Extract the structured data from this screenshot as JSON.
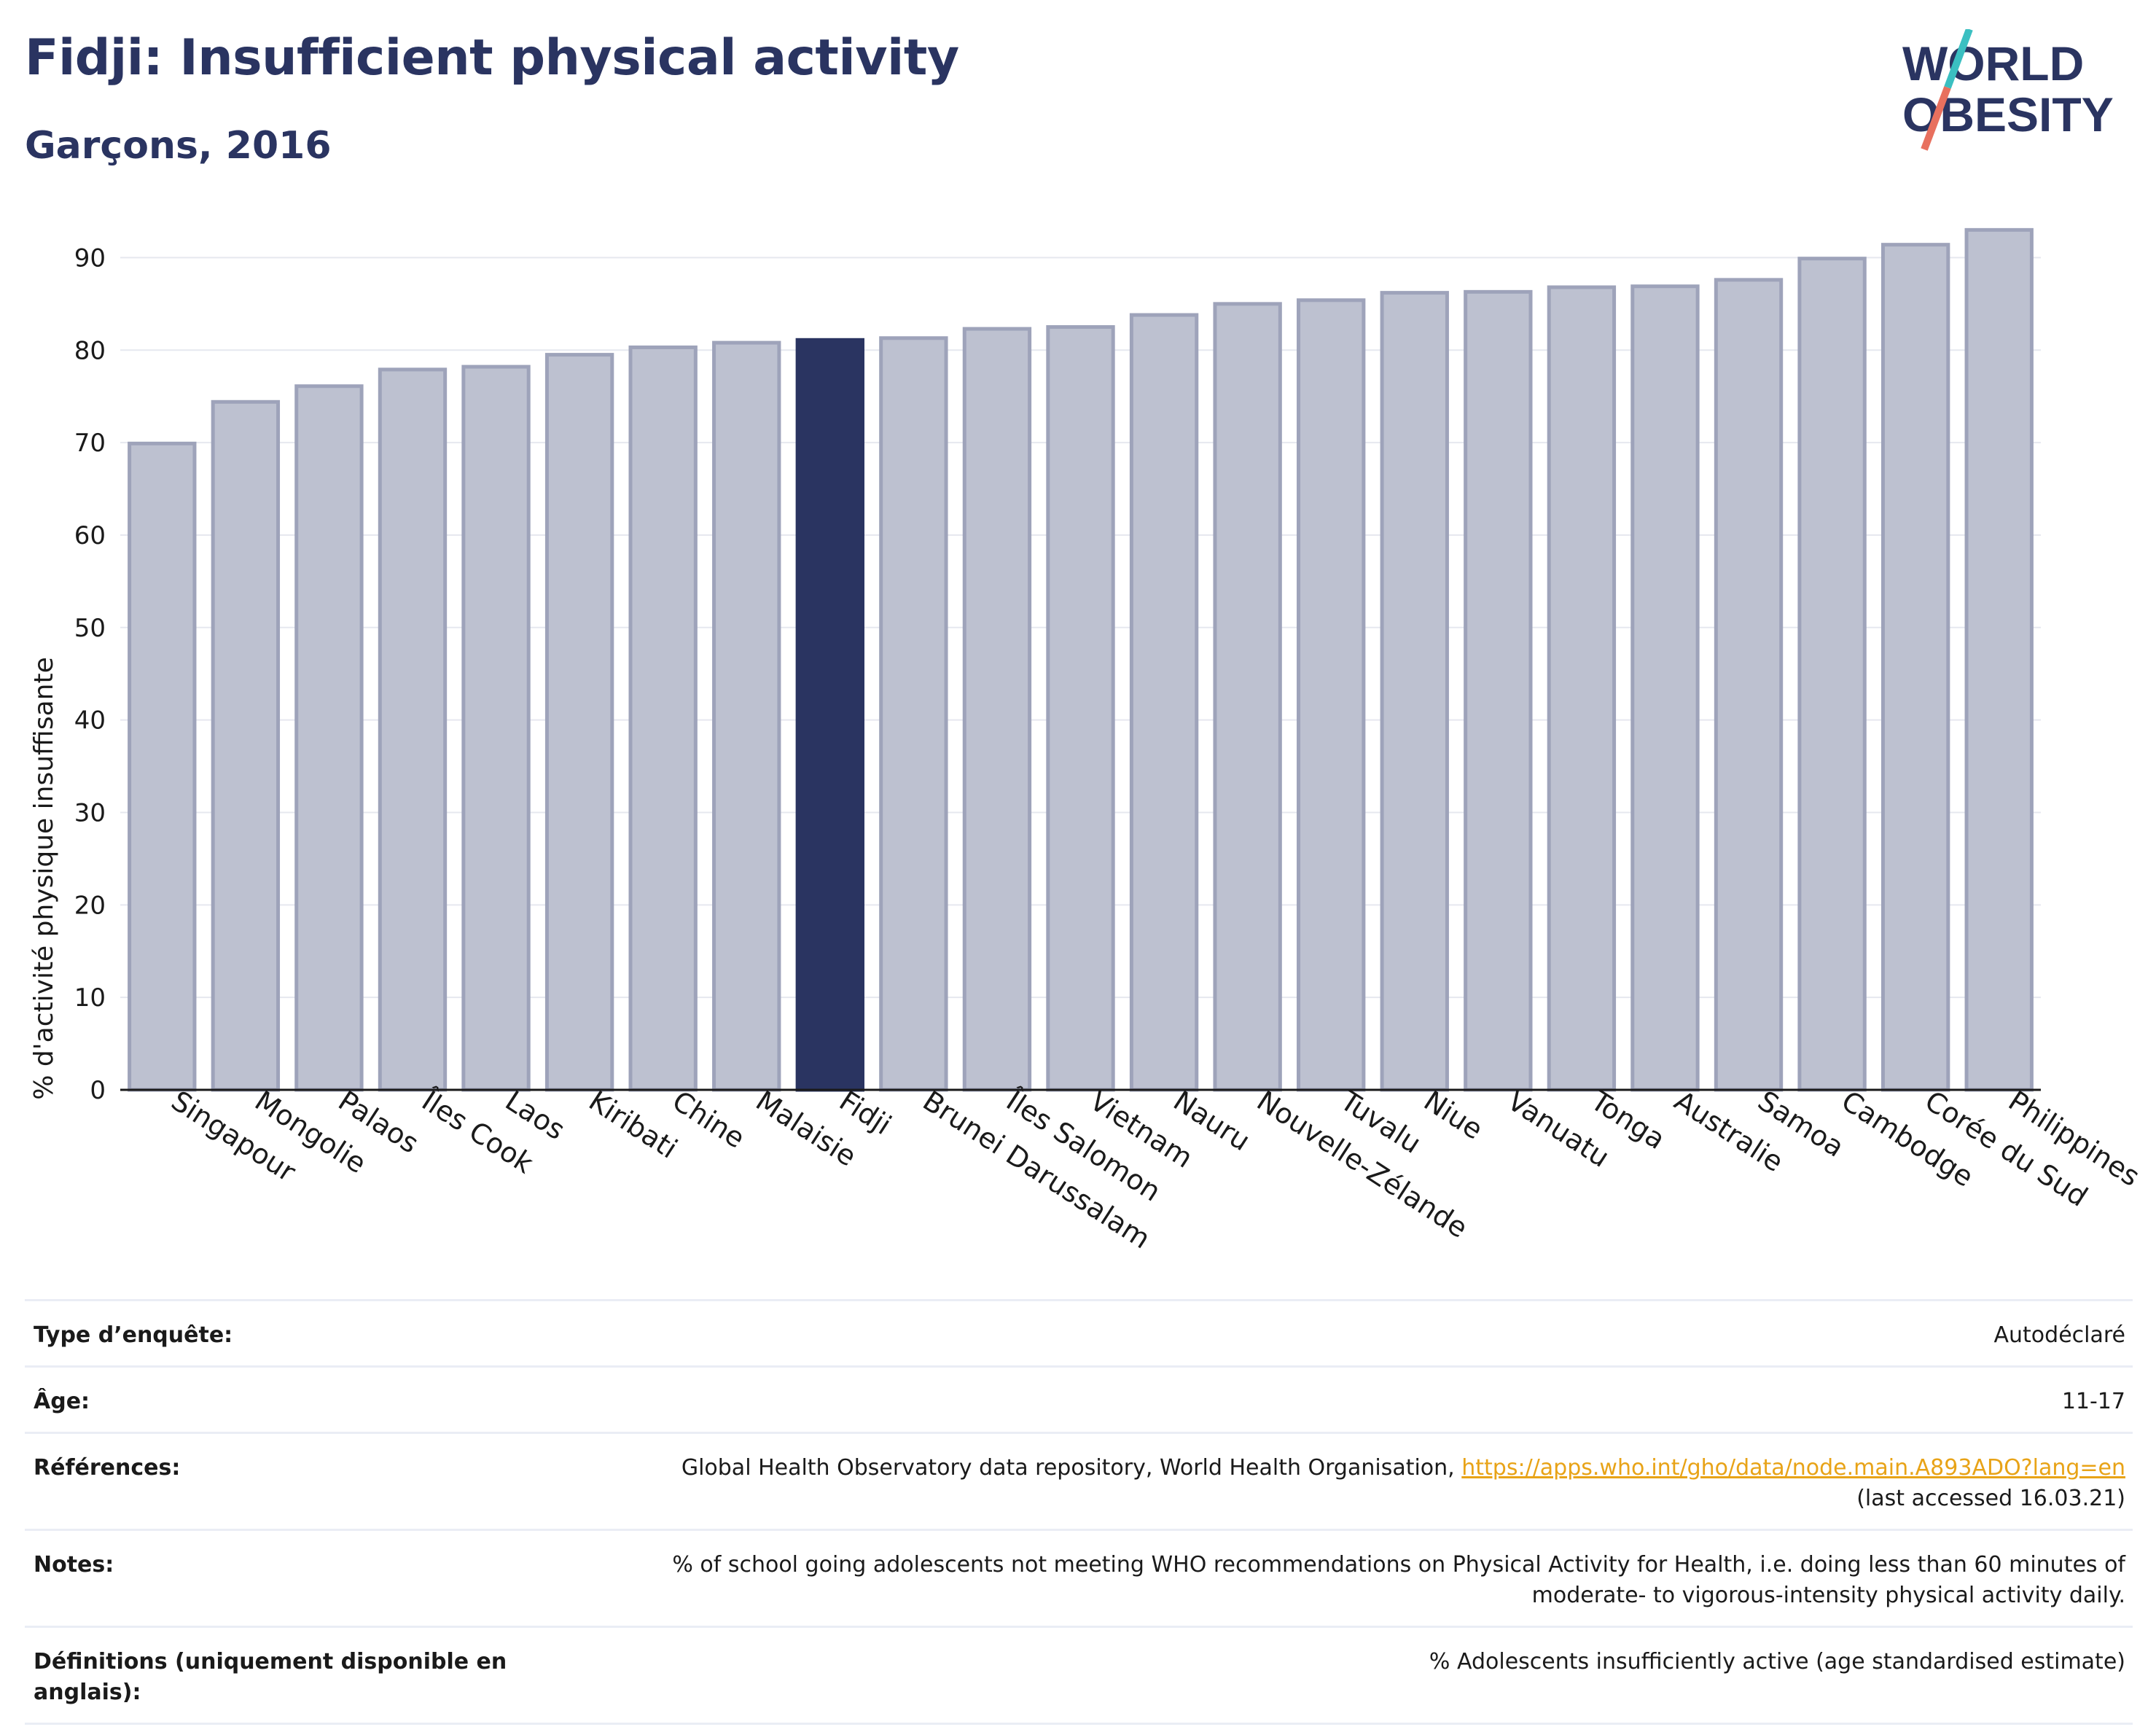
{
  "header": {
    "title": "Fidji: Insufficient physical activity",
    "subtitle": "Garçons, 2016"
  },
  "logo": {
    "line1": "WORLD",
    "line2": "OBESITY",
    "colors": {
      "text": "#2a3461",
      "slash_top": "#3bbfc1",
      "slash_bottom": "#e8705e"
    }
  },
  "colors": {
    "bar_default": "#bdc1d0",
    "bar_default_stroke": "#9ea3ba",
    "bar_highlight": "#2a3461",
    "axis": "#1a1a1a",
    "grid": "#e6e8ef"
  },
  "chart_data": {
    "type": "bar",
    "ylabel": "% d'activité physique insuffisante",
    "xlabel": "",
    "ylim": [
      0,
      95
    ],
    "yticks": [
      0,
      10,
      20,
      30,
      40,
      50,
      60,
      70,
      80,
      90
    ],
    "grid": true,
    "highlight": "Fidji",
    "categories": [
      "Singapour",
      "Mongolie",
      "Palaos",
      "Îles Cook",
      "Laos",
      "Kiribati",
      "Chine",
      "Malaisie",
      "Fidji",
      "Brunei Darussalam",
      "Îles Salomon",
      "Vietnam",
      "Nauru",
      "Nouvelle-Zélande",
      "Tuvalu",
      "Niue",
      "Vanuatu",
      "Tonga",
      "Australie",
      "Samoa",
      "Cambodge",
      "Corée du Sud",
      "Philippines"
    ],
    "values": [
      69.9,
      74.4,
      76.1,
      77.9,
      78.2,
      79.5,
      80.3,
      80.8,
      81.1,
      81.3,
      82.3,
      82.5,
      83.8,
      85.0,
      85.4,
      86.2,
      86.3,
      86.8,
      86.9,
      87.6,
      89.9,
      91.4,
      93.0
    ]
  },
  "info": [
    {
      "label": "Type d’enquête:",
      "value": "Autodéclaré"
    },
    {
      "label": "Âge:",
      "value": "11-17"
    },
    {
      "label": "Références:",
      "value": "Global Health Observatory data repository, World Health Organisation,",
      "link": "https://apps.who.int/gho/data/node.main.A893ADO?lang=en",
      "value2": "(last accessed 16.03.21)"
    },
    {
      "label": "Notes:",
      "value": "% of school going adolescents not meeting WHO recommendations on Physical Activity for Health, i.e. doing less than 60 minutes of",
      "value2": "moderate- to vigorous-intensity physical activity daily."
    },
    {
      "label": "Définitions (uniquement disponible en anglais):",
      "value": "% Adolescents insufficiently active (age standardised estimate)"
    }
  ]
}
